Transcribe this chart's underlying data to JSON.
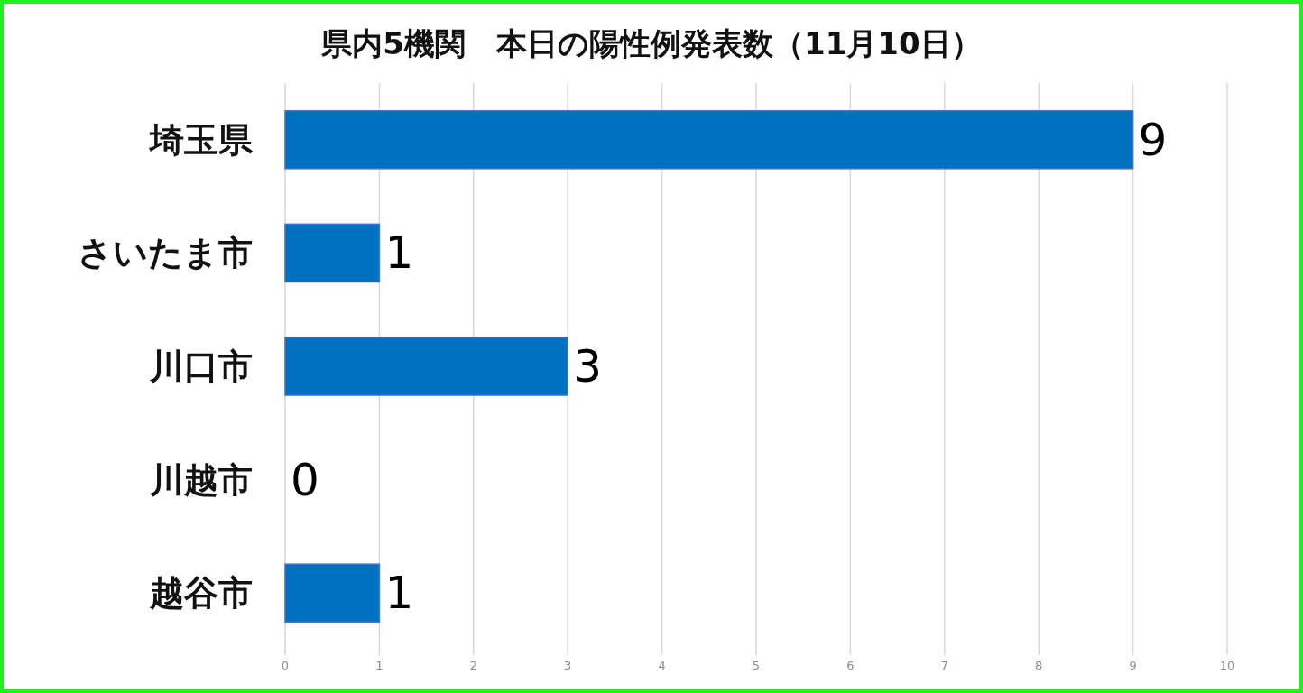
{
  "chart_data": {
    "type": "bar",
    "orientation": "horizontal",
    "title": "県内5機関　本日の陽性例発表数（11月10日）",
    "categories": [
      "埼玉県",
      "さいたま市",
      "川口市",
      "川越市",
      "越谷市"
    ],
    "values": [
      9,
      1,
      3,
      0,
      1
    ],
    "color": "#0070c0",
    "xlim": [
      0,
      10
    ],
    "xticks": [
      0,
      1,
      2,
      3,
      4,
      5,
      6,
      7,
      8,
      9,
      10
    ],
    "grid": "x",
    "data_labels": true
  }
}
